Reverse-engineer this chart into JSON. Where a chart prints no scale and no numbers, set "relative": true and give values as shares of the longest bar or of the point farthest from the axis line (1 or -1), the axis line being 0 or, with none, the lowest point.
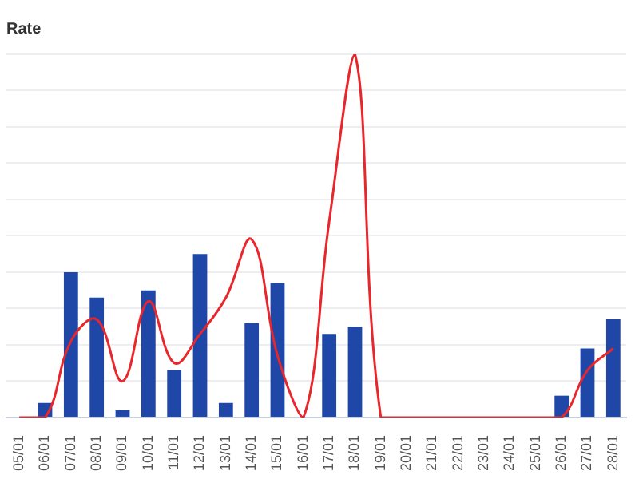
{
  "chart_data": {
    "type": "bar",
    "title": "Rate",
    "relative": true,
    "grid": "y",
    "legend": false,
    "categories": [
      "05/01",
      "06/01",
      "07/01",
      "08/01",
      "09/01",
      "10/01",
      "11/01",
      "12/01",
      "13/01",
      "14/01",
      "15/01",
      "16/01",
      "17/01",
      "18/01",
      "19/01",
      "20/01",
      "21/01",
      "22/01",
      "23/01",
      "24/01",
      "25/01",
      "26/01",
      "27/01",
      "28/01"
    ],
    "series": [
      {
        "color": "#1f47a8",
        "values": [
          null,
          0.04,
          0.4,
          0.33,
          0.02,
          0.35,
          0.13,
          0.45,
          0.04,
          0.26,
          0.37,
          null,
          0.23,
          0.25,
          null,
          null,
          null,
          null,
          null,
          null,
          null,
          0.06,
          0.19,
          0.27
        ]
      },
      {
        "type": "line",
        "color": "#e8262b",
        "marker": "none",
        "values": [
          0,
          0,
          0.21,
          0.27,
          0.1,
          0.32,
          0.15,
          0.23,
          0.33,
          0.49,
          0.17,
          0,
          0.54,
          1,
          0,
          0,
          0,
          0,
          0,
          0,
          0,
          0,
          0.13,
          0.19
        ]
      }
    ]
  }
}
